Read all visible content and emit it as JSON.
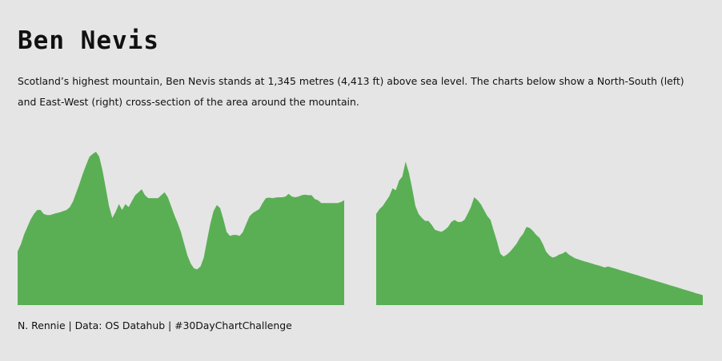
{
  "page": {
    "title": "Ben Nevis",
    "subtitle": "Scotland’s highest mountain, Ben Nevis stands at  1,345 metres (4,413 ft) above sea level. The charts below show a North-South (left) and East-West (right) cross-section of the area around the mountain.",
    "caption": "N. Rennie | Data: OS Datahub | #30DayChartChallenge"
  },
  "colors": {
    "background": "#e5e5e5",
    "fill": "#5aaf55"
  },
  "chart_data": [
    {
      "type": "area",
      "title": "",
      "xlabel": "",
      "ylabel": "",
      "grid": false,
      "ylim": [
        0,
        1345
      ],
      "x": [
        0,
        1,
        2,
        3,
        4,
        5,
        6,
        7,
        8,
        9,
        10,
        11,
        12,
        13,
        14,
        15,
        16,
        17,
        18,
        19,
        20,
        21,
        22,
        23,
        24,
        25,
        26,
        27,
        28,
        29,
        30,
        31,
        32,
        33,
        34,
        35,
        36,
        37,
        38,
        39,
        40,
        41,
        42,
        43,
        44,
        45,
        46,
        47,
        48,
        49,
        50,
        51,
        52,
        53,
        54,
        55,
        56,
        57,
        58,
        59,
        60,
        61,
        62,
        63,
        64,
        65,
        66,
        67,
        68,
        69,
        70,
        71,
        72,
        73,
        74,
        75,
        76,
        77,
        78,
        79,
        80,
        81,
        82,
        83,
        84,
        85,
        86,
        87,
        88,
        89,
        90,
        91,
        92,
        93,
        94,
        95,
        96,
        97,
        98,
        99,
        100
      ],
      "y": [
        471,
        533,
        621,
        686,
        751,
        799,
        834,
        834,
        799,
        790,
        790,
        799,
        808,
        815,
        825,
        834,
        860,
        912,
        990,
        1068,
        1155,
        1231,
        1301,
        1326,
        1345,
        1301,
        1180,
        1024,
        868,
        764,
        816,
        886,
        834,
        886,
        860,
        912,
        964,
        990,
        1016,
        964,
        938,
        938,
        938,
        938,
        964,
        990,
        946,
        868,
        790,
        721,
        642,
        538,
        434,
        365,
        322,
        313,
        339,
        417,
        565,
        712,
        825,
        877,
        851,
        755,
        642,
        607,
        616,
        616,
        607,
        642,
        712,
        778,
        808,
        825,
        843,
        895,
        938,
        943,
        938,
        943,
        946,
        946,
        952,
        975,
        952,
        946,
        952,
        964,
        968,
        964,
        964,
        930,
        920,
        895,
        895,
        895,
        895,
        895,
        895,
        904,
        920
      ]
    },
    {
      "type": "area",
      "title": "",
      "xlabel": "",
      "ylabel": "",
      "grid": false,
      "ylim": [
        0,
        1345
      ],
      "x": [
        0,
        1,
        2,
        3,
        4,
        5,
        6,
        7,
        8,
        9,
        10,
        11,
        12,
        13,
        14,
        15,
        16,
        17,
        18,
        19,
        20,
        21,
        22,
        23,
        24,
        25,
        26,
        27,
        28,
        29,
        30,
        31,
        32,
        33,
        34,
        35,
        36,
        37,
        38,
        39,
        40,
        41,
        42,
        43,
        44,
        45,
        46,
        47,
        48,
        49,
        50,
        51,
        52,
        53,
        54,
        55,
        56,
        57,
        58,
        59,
        60,
        61,
        62,
        63,
        64,
        65,
        66,
        67,
        68,
        69,
        70,
        71,
        72,
        73,
        74,
        75,
        76,
        77,
        78,
        79,
        80,
        81,
        82,
        83,
        84,
        85,
        86,
        87,
        88,
        89,
        90,
        91,
        92,
        93,
        94,
        95,
        96,
        97,
        98,
        99,
        100
      ],
      "y": [
        799,
        842,
        869,
        912,
        955,
        1024,
        1007,
        1093,
        1127,
        1258,
        1163,
        1024,
        868,
        799,
        764,
        738,
        738,
        703,
        660,
        651,
        643,
        660,
        686,
        729,
        747,
        729,
        729,
        747,
        799,
        860,
        946,
        921,
        886,
        834,
        782,
        747,
        651,
        556,
        452,
        426,
        443,
        469,
        504,
        539,
        590,
        625,
        686,
        677,
        651,
        616,
        590,
        538,
        469,
        436,
        417,
        426,
        443,
        452,
        469,
        443,
        426,
        409,
        400,
        391,
        382,
        374,
        365,
        356,
        348,
        339,
        330,
        339,
        330,
        322,
        313,
        304,
        296,
        287,
        278,
        270,
        262,
        252,
        243,
        235,
        226,
        218,
        209,
        200,
        192,
        183,
        174,
        165,
        157,
        148,
        139,
        130,
        122,
        113,
        104,
        96,
        87
      ]
    }
  ]
}
